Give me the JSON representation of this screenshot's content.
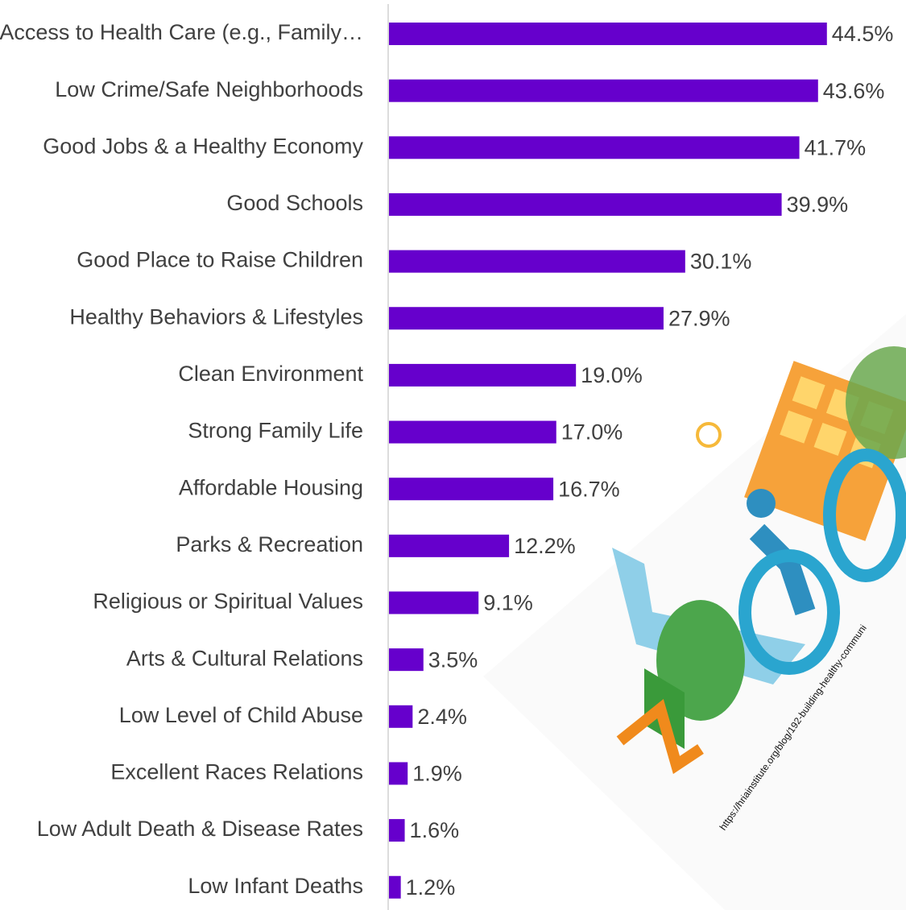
{
  "chart_data": {
    "type": "bar",
    "orientation": "horizontal",
    "categories": [
      "Access to Health Care (e.g., Family…",
      "Low Crime/Safe Neighborhoods",
      "Good Jobs & a Healthy Economy",
      "Good Schools",
      "Good Place to Raise Children",
      "Healthy Behaviors & Lifestyles",
      "Clean Environment",
      "Strong Family Life",
      "Affordable Housing",
      "Parks & Recreation",
      "Religious or Spiritual Values",
      "Arts & Cultural Relations",
      "Low Level of Child Abuse",
      "Excellent Races Relations",
      "Low Adult Death & Disease Rates",
      "Low Infant Deaths"
    ],
    "values": [
      44.5,
      43.6,
      41.7,
      39.9,
      30.1,
      27.9,
      19.0,
      17.0,
      16.7,
      12.2,
      9.1,
      3.5,
      2.4,
      1.9,
      1.6,
      1.2
    ],
    "value_labels": [
      "44.5%",
      "43.6%",
      "41.7%",
      "39.9%",
      "30.1%",
      "27.9%",
      "19.0%",
      "17.0%",
      "16.7%",
      "12.2%",
      "9.1%",
      "3.5%",
      "2.4%",
      "1.9%",
      "1.6%",
      "1.2%"
    ],
    "color": "#6600cc",
    "xlim": [
      0,
      50
    ],
    "annotation": "https://hriainstitute.org/blog/192-building-healthy-communi"
  }
}
